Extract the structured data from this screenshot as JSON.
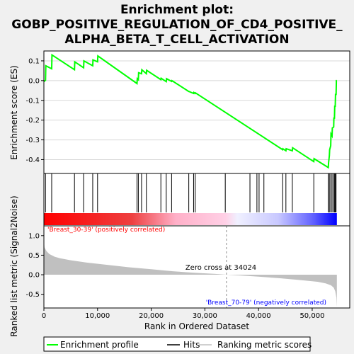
{
  "title_lines": [
    "Enrichment plot:",
    "GOBP_POSITIVE_REGULATION_OF_CD4_POSITIVE_",
    "ALPHA_BETA_T_CELL_ACTIVATION"
  ],
  "colors": {
    "profile": "#00ff00",
    "hits": "#000000",
    "metric_fill": "#c0c0c0",
    "positive_label": "#ff0000",
    "negative_label": "#0000ff",
    "zero_line": "#909090"
  },
  "chart_data": [
    {
      "type": "line",
      "ylabel": "Enrichment score (ES)",
      "ylim": [
        -0.47,
        0.15
      ],
      "xlim": [
        0,
        57000
      ],
      "yticks": [
        -0.4,
        -0.3,
        -0.2,
        -0.1,
        0.0,
        0.1
      ],
      "ytick_labels": [
        "-0.4",
        "-0.3",
        "-0.2",
        "-0.1",
        "0.0",
        "0.1"
      ],
      "grid": true,
      "series": [
        {
          "name": "Enrichment profile",
          "x": [
            0,
            300,
            350,
            1450,
            1500,
            5700,
            5750,
            7400,
            7450,
            9100,
            9150,
            10000,
            10050,
            17350,
            17400,
            17600,
            17650,
            18200,
            18250,
            19100,
            19150,
            21800,
            21850,
            22800,
            22850,
            23800,
            23850,
            27000,
            27050,
            27900,
            27950,
            28200,
            28250,
            44500,
            44550,
            45100,
            45150,
            46300,
            46350,
            50300,
            50350,
            53000,
            53050,
            53200,
            53250,
            53450,
            53500,
            53700,
            53750,
            54000,
            54050,
            54150,
            54200,
            54300,
            54350,
            54450,
            54500,
            54600
          ],
          "y": [
            -0.005,
            0.002,
            0.075,
            0.06,
            0.13,
            0.055,
            0.095,
            0.065,
            0.1,
            0.075,
            0.105,
            0.095,
            0.125,
            -0.015,
            0.01,
            0.005,
            0.04,
            0.035,
            0.055,
            0.035,
            0.052,
            0.005,
            0.012,
            -0.005,
            0.01,
            -0.004,
            0.0,
            -0.055,
            -0.055,
            -0.065,
            -0.06,
            -0.065,
            -0.062,
            -0.35,
            -0.345,
            -0.355,
            -0.345,
            -0.355,
            -0.34,
            -0.41,
            -0.395,
            -0.44,
            -0.415,
            -0.38,
            -0.35,
            -0.33,
            -0.27,
            -0.28,
            -0.24,
            -0.235,
            -0.19,
            -0.19,
            -0.13,
            -0.13,
            -0.07,
            -0.07,
            0.0,
            0.0
          ]
        }
      ]
    },
    {
      "type": "bar",
      "title": "Hits",
      "hits_x": [
        300,
        1450,
        5700,
        7400,
        9100,
        10000,
        17350,
        17600,
        18200,
        19100,
        21800,
        22800,
        23800,
        27000,
        27900,
        28200,
        33800,
        38400,
        39700,
        40100,
        41000,
        44500,
        45100,
        46300,
        50300,
        53000,
        53200,
        53450,
        53700,
        54000,
        54150,
        54300,
        54450
      ],
      "gradient_xlim": [
        0,
        54600
      ],
      "zero_cross_x": 34024
    },
    {
      "type": "area",
      "ylabel": "Ranked list metric (Signal2Noise)",
      "xlabel": "Rank in Ordered Dataset",
      "ylim": [
        -0.85,
        1.25
      ],
      "xlim": [
        0,
        57000
      ],
      "xticks": [
        0,
        10000,
        20000,
        30000,
        40000,
        50000
      ],
      "xtick_labels": [
        "0",
        "10,000",
        "20,000",
        "30,000",
        "40,000",
        "50,000"
      ],
      "yticks": [
        -0.5,
        0.0,
        0.5,
        1.0
      ],
      "ytick_labels": [
        "-0.5",
        "0.0",
        "0.5",
        "1.0"
      ],
      "x": [
        0,
        100,
        500,
        1000,
        2000,
        3000,
        5000,
        8000,
        12000,
        16000,
        20000,
        24000,
        28000,
        32000,
        34024,
        37000,
        40000,
        44000,
        48000,
        51000,
        52500,
        53500,
        54000,
        54300,
        54500,
        54600
      ],
      "y": [
        0.88,
        0.7,
        0.6,
        0.53,
        0.46,
        0.42,
        0.37,
        0.31,
        0.25,
        0.19,
        0.14,
        0.09,
        0.05,
        0.02,
        0.0,
        -0.02,
        -0.05,
        -0.09,
        -0.14,
        -0.18,
        -0.22,
        -0.27,
        -0.33,
        -0.42,
        -0.58,
        -0.82
      ],
      "positive_label": "'Breast_30-39' (positively correlated)",
      "negative_label": "'Breast_70-79' (negatively correlated)",
      "zero_cross_label": "Zero cross at 34024"
    }
  ],
  "legend": {
    "items": [
      {
        "label": "Enrichment profile",
        "color": "#00ff00"
      },
      {
        "label": "Hits",
        "color": "#000000"
      },
      {
        "label": "Ranking metric scores",
        "color": "#c0c0c0"
      }
    ]
  }
}
